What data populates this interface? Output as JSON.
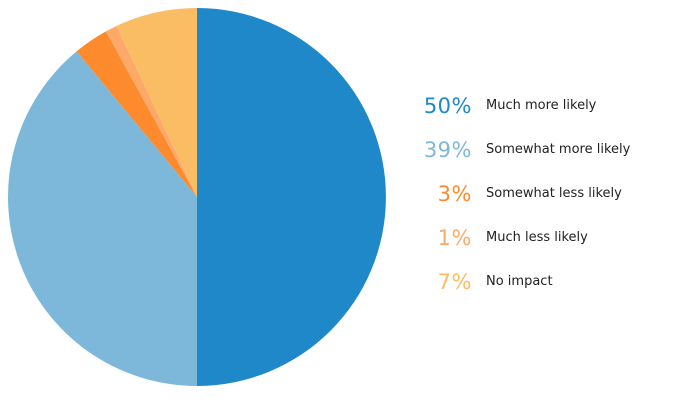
{
  "chart_data": {
    "type": "pie",
    "slices": [
      {
        "label": "Much more likely",
        "value": 50,
        "value_label": "50%",
        "color": "#1f88c9"
      },
      {
        "label": "Somewhat more likely",
        "value": 39,
        "value_label": "39%",
        "color": "#7db8da"
      },
      {
        "label": "Somewhat less likely",
        "value": 3,
        "value_label": "3%",
        "color": "#fd8a2c"
      },
      {
        "label": "Much less likely",
        "value": 1,
        "value_label": "1%",
        "color": "#fda96a"
      },
      {
        "label": "No impact",
        "value": 7,
        "value_label": "7%",
        "color": "#fbbd63"
      }
    ],
    "start": "12 o'clock",
    "direction": "clockwise",
    "legend_position": "right"
  }
}
